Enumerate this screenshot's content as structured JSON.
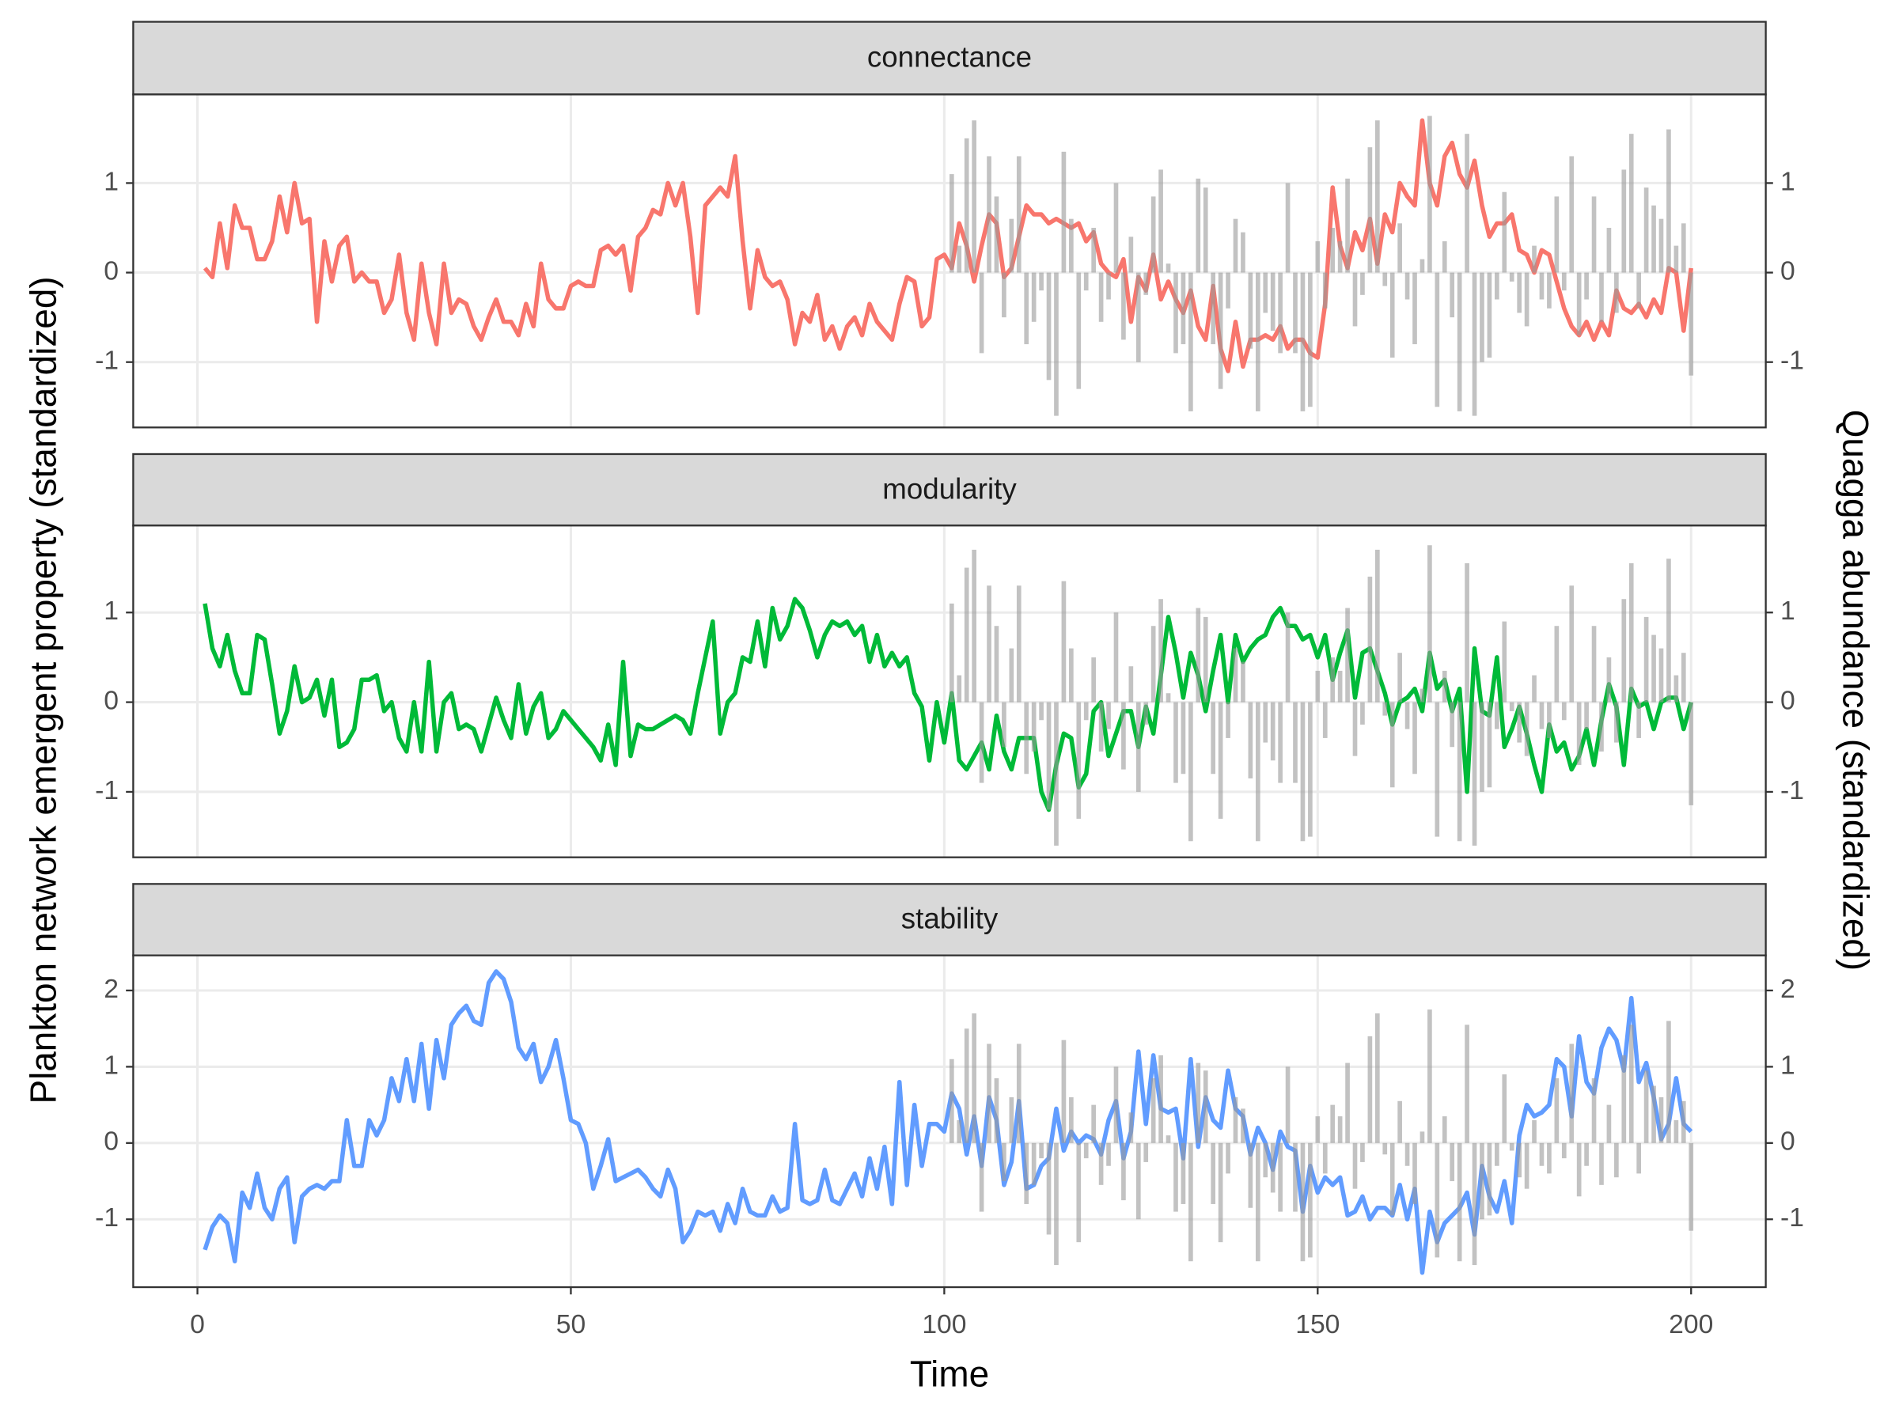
{
  "chart_data": {
    "type": "line",
    "x_label": "Time",
    "y_label": "Plankton network emergent property (standardized)",
    "y2_label": "Quagga abundance (standardized)",
    "xlim": [
      -8.6,
      210
    ],
    "xticks": [
      0,
      50,
      100,
      150,
      200
    ],
    "grid": true,
    "x": [
      1,
      2,
      3,
      4,
      5,
      6,
      7,
      8,
      9,
      10,
      11,
      12,
      13,
      14,
      15,
      16,
      17,
      18,
      19,
      20,
      21,
      22,
      23,
      24,
      25,
      26,
      27,
      28,
      29,
      30,
      31,
      32,
      33,
      34,
      35,
      36,
      37,
      38,
      39,
      40,
      41,
      42,
      43,
      44,
      45,
      46,
      47,
      48,
      49,
      50,
      51,
      52,
      53,
      54,
      55,
      56,
      57,
      58,
      59,
      60,
      61,
      62,
      63,
      64,
      65,
      66,
      67,
      68,
      69,
      70,
      71,
      72,
      73,
      74,
      75,
      76,
      77,
      78,
      79,
      80,
      81,
      82,
      83,
      84,
      85,
      86,
      87,
      88,
      89,
      90,
      91,
      92,
      93,
      94,
      95,
      96,
      97,
      98,
      99,
      100,
      101,
      102,
      103,
      104,
      105,
      106,
      107,
      108,
      109,
      110,
      111,
      112,
      113,
      114,
      115,
      116,
      117,
      118,
      119,
      120,
      121,
      122,
      123,
      124,
      125,
      126,
      127,
      128,
      129,
      130,
      131,
      132,
      133,
      134,
      135,
      136,
      137,
      138,
      139,
      140,
      141,
      142,
      143,
      144,
      145,
      146,
      147,
      148,
      149,
      150,
      151,
      152,
      153,
      154,
      155,
      156,
      157,
      158,
      159,
      160,
      161,
      162,
      163,
      164,
      165,
      166,
      167,
      168,
      169,
      170,
      171,
      172,
      173,
      174,
      175,
      176,
      177,
      178,
      179,
      180,
      181,
      182,
      183,
      184,
      185,
      186,
      187,
      188,
      189,
      190,
      191,
      192,
      193,
      194,
      195,
      196,
      197,
      198,
      199,
      200
    ],
    "bars": {
      "type": "bar",
      "axis": "y2",
      "color": "#999999",
      "x": [
        101,
        102,
        103,
        104,
        105,
        106,
        107,
        108,
        109,
        110,
        111,
        112,
        113,
        114,
        115,
        116,
        117,
        118,
        119,
        120,
        121,
        122,
        123,
        124,
        125,
        126,
        127,
        128,
        129,
        130,
        131,
        132,
        133,
        134,
        135,
        136,
        137,
        138,
        139,
        140,
        141,
        142,
        143,
        144,
        145,
        146,
        147,
        148,
        149,
        150,
        151,
        152,
        153,
        154,
        155,
        156,
        157,
        158,
        159,
        160,
        161,
        162,
        163,
        164,
        165,
        166,
        167,
        168,
        169,
        170,
        171,
        172,
        173,
        174,
        175,
        176,
        177,
        178,
        179,
        180,
        181,
        182,
        183,
        184,
        185,
        186,
        187,
        188,
        189,
        190,
        191,
        192,
        193,
        194,
        195,
        196,
        197,
        198,
        199,
        200
      ],
      "values": [
        1.1,
        0.3,
        1.5,
        1.7,
        -0.9,
        1.3,
        0.85,
        -0.5,
        0.6,
        1.3,
        -0.8,
        -0.55,
        -0.2,
        -1.2,
        -1.6,
        1.35,
        0.6,
        -1.3,
        -0.2,
        0.5,
        -0.55,
        -0.3,
        1.0,
        -0.75,
        0.4,
        -1.0,
        -0.25,
        0.85,
        1.15,
        0.1,
        -0.9,
        -0.8,
        -1.55,
        1.05,
        0.95,
        -0.8,
        -1.3,
        -0.4,
        0.6,
        0.45,
        -0.85,
        -1.55,
        -0.45,
        -0.65,
        -0.9,
        1.0,
        -0.9,
        -1.55,
        -1.5,
        0.35,
        -0.4,
        0.5,
        0.35,
        1.05,
        -0.6,
        -0.25,
        1.4,
        1.7,
        -0.15,
        -0.95,
        0.55,
        -0.3,
        -0.8,
        0.15,
        1.75,
        -1.5,
        0.35,
        -0.5,
        -1.55,
        1.55,
        -1.6,
        -1.0,
        -0.95,
        -0.3,
        0.9,
        -0.1,
        -0.45,
        -0.6,
        0.3,
        -0.3,
        -0.4,
        0.85,
        -0.2,
        1.3,
        -0.7,
        -0.3,
        0.85,
        -0.55,
        0.5,
        -0.45,
        1.15,
        1.55,
        -0.4,
        0.95,
        0.75,
        0.6,
        1.6,
        0.3,
        0.55,
        -1.15
      ]
    },
    "facets": [
      {
        "title": "connectance",
        "color": "#F8766D",
        "ylim": [
          -1.73,
          1.99
        ],
        "yticks": [
          -1,
          0,
          1
        ],
        "y2lim": [
          -1.73,
          1.99
        ],
        "y2ticks": [
          -1,
          0,
          1
        ],
        "values": [
          0.05,
          -0.05,
          0.55,
          0.05,
          0.75,
          0.5,
          0.5,
          0.15,
          0.15,
          0.35,
          0.85,
          0.45,
          1.0,
          0.55,
          0.6,
          -0.55,
          0.35,
          -0.1,
          0.3,
          0.4,
          -0.1,
          0.0,
          -0.1,
          -0.1,
          -0.45,
          -0.3,
          0.2,
          -0.45,
          -0.75,
          0.1,
          -0.45,
          -0.8,
          0.1,
          -0.45,
          -0.3,
          -0.35,
          -0.6,
          -0.75,
          -0.5,
          -0.3,
          -0.55,
          -0.55,
          -0.7,
          -0.35,
          -0.6,
          0.1,
          -0.3,
          -0.4,
          -0.4,
          -0.15,
          -0.1,
          -0.15,
          -0.15,
          0.25,
          0.3,
          0.2,
          0.3,
          -0.2,
          0.4,
          0.5,
          0.7,
          0.65,
          1.0,
          0.75,
          1.0,
          0.4,
          -0.45,
          0.75,
          0.85,
          0.95,
          0.85,
          1.3,
          0.35,
          -0.4,
          0.25,
          -0.05,
          -0.15,
          -0.1,
          -0.3,
          -0.8,
          -0.45,
          -0.55,
          -0.25,
          -0.75,
          -0.6,
          -0.85,
          -0.6,
          -0.5,
          -0.7,
          -0.35,
          -0.55,
          -0.65,
          -0.75,
          -0.35,
          -0.05,
          -0.1,
          -0.6,
          -0.5,
          0.15,
          0.2,
          0.05,
          0.55,
          0.3,
          -0.1,
          0.3,
          0.65,
          0.55,
          -0.05,
          0.05,
          0.4,
          0.75,
          0.65,
          0.65,
          0.55,
          0.6,
          0.55,
          0.5,
          0.55,
          0.35,
          0.45,
          0.1,
          0.0,
          -0.05,
          0.15,
          -0.55,
          -0.05,
          -0.2,
          0.2,
          -0.3,
          -0.1,
          -0.3,
          -0.45,
          -0.2,
          -0.6,
          -0.75,
          -0.15,
          -0.85,
          -1.1,
          -0.55,
          -1.05,
          -0.75,
          -0.75,
          -0.7,
          -0.75,
          -0.6,
          -0.85,
          -0.75,
          -0.75,
          -0.9,
          -0.95,
          -0.35,
          0.95,
          0.3,
          0.05,
          0.45,
          0.25,
          0.6,
          0.1,
          0.65,
          0.45,
          1.0,
          0.85,
          0.75,
          1.7,
          1.0,
          0.75,
          1.3,
          1.45,
          1.1,
          0.95,
          1.25,
          0.75,
          0.4,
          0.55,
          0.55,
          0.65,
          0.25,
          0.2,
          0.0,
          0.25,
          0.2,
          -0.1,
          -0.4,
          -0.6,
          -0.7,
          -0.55,
          -0.75,
          -0.55,
          -0.7,
          -0.2,
          -0.4,
          -0.45,
          -0.35,
          -0.5,
          -0.3,
          -0.45,
          0.05,
          0.0,
          -0.65,
          0.05
        ]
      },
      {
        "title": "modularity",
        "color": "#00BA38",
        "ylim": [
          -1.73,
          1.97
        ],
        "yticks": [
          -1,
          0,
          1
        ],
        "y2lim": [
          -1.73,
          1.97
        ],
        "y2ticks": [
          -1,
          0,
          1
        ],
        "values": [
          1.1,
          0.6,
          0.4,
          0.75,
          0.35,
          0.1,
          0.1,
          0.75,
          0.7,
          0.2,
          -0.35,
          -0.1,
          0.4,
          0.0,
          0.05,
          0.25,
          -0.15,
          0.25,
          -0.5,
          -0.45,
          -0.3,
          0.25,
          0.25,
          0.3,
          -0.1,
          0.0,
          -0.4,
          -0.55,
          0.0,
          -0.55,
          0.45,
          -0.55,
          0.0,
          0.1,
          -0.3,
          -0.25,
          -0.3,
          -0.55,
          -0.25,
          0.05,
          -0.2,
          -0.4,
          0.2,
          -0.35,
          -0.05,
          0.1,
          -0.4,
          -0.3,
          -0.1,
          -0.2,
          -0.3,
          -0.4,
          -0.5,
          -0.65,
          -0.25,
          -0.7,
          0.45,
          -0.6,
          -0.25,
          -0.3,
          -0.3,
          -0.25,
          -0.2,
          -0.15,
          -0.2,
          -0.35,
          0.1,
          0.5,
          0.9,
          -0.35,
          0.0,
          0.1,
          0.5,
          0.45,
          0.9,
          0.4,
          1.05,
          0.7,
          0.85,
          1.15,
          1.05,
          0.8,
          0.5,
          0.75,
          0.9,
          0.85,
          0.9,
          0.75,
          0.85,
          0.45,
          0.75,
          0.4,
          0.55,
          0.4,
          0.5,
          0.1,
          -0.05,
          -0.65,
          0.0,
          -0.45,
          0.1,
          -0.65,
          -0.75,
          -0.6,
          -0.45,
          -0.75,
          -0.15,
          -0.55,
          -0.75,
          -0.4,
          -0.4,
          -0.4,
          -1.0,
          -1.2,
          -0.7,
          -0.35,
          -0.4,
          -0.95,
          -0.8,
          -0.1,
          0.0,
          -0.6,
          -0.35,
          -0.1,
          -0.1,
          -0.5,
          -0.05,
          -0.35,
          0.3,
          0.95,
          0.55,
          0.05,
          0.55,
          0.3,
          -0.1,
          0.35,
          0.75,
          0.0,
          0.75,
          0.45,
          0.6,
          0.7,
          0.75,
          0.95,
          1.05,
          0.85,
          0.85,
          0.7,
          0.75,
          0.5,
          0.75,
          0.25,
          0.55,
          0.8,
          0.05,
          0.55,
          0.6,
          0.35,
          0.1,
          -0.25,
          0.0,
          0.05,
          0.15,
          -0.1,
          0.55,
          0.15,
          0.25,
          -0.1,
          0.15,
          -1.0,
          0.6,
          -0.1,
          -0.15,
          0.5,
          -0.5,
          -0.3,
          -0.05,
          -0.35,
          -0.7,
          -1.0,
          -0.25,
          -0.55,
          -0.45,
          -0.75,
          -0.6,
          -0.3,
          -0.7,
          -0.2,
          0.2,
          -0.05,
          -0.7,
          0.15,
          -0.05,
          0.0,
          -0.3,
          0.0,
          0.05,
          0.05,
          -0.3,
          0.0
        ]
      },
      {
        "title": "stability",
        "color": "#619CFF",
        "ylim": [
          -1.89,
          2.46
        ],
        "yticks": [
          -1,
          0,
          1,
          2
        ],
        "y2lim": [
          -1.89,
          2.46
        ],
        "y2ticks": [
          -1,
          0,
          1,
          2
        ],
        "values": [
          -1.4,
          -1.1,
          -0.95,
          -1.05,
          -1.55,
          -0.65,
          -0.85,
          -0.4,
          -0.85,
          -1.0,
          -0.6,
          -0.45,
          -1.3,
          -0.7,
          -0.6,
          -0.55,
          -0.6,
          -0.5,
          -0.5,
          0.3,
          -0.3,
          -0.3,
          0.3,
          0.1,
          0.3,
          0.85,
          0.55,
          1.1,
          0.55,
          1.3,
          0.45,
          1.35,
          0.85,
          1.55,
          1.7,
          1.8,
          1.6,
          1.55,
          2.1,
          2.25,
          2.15,
          1.85,
          1.25,
          1.1,
          1.3,
          0.8,
          1.0,
          1.35,
          0.85,
          0.3,
          0.25,
          0.0,
          -0.6,
          -0.3,
          0.05,
          -0.5,
          -0.45,
          -0.4,
          -0.35,
          -0.45,
          -0.6,
          -0.7,
          -0.35,
          -0.6,
          -1.3,
          -1.15,
          -0.9,
          -0.95,
          -0.9,
          -1.15,
          -0.8,
          -1.05,
          -0.6,
          -0.9,
          -0.95,
          -0.95,
          -0.7,
          -0.9,
          -0.85,
          0.25,
          -0.75,
          -0.8,
          -0.75,
          -0.35,
          -0.75,
          -0.8,
          -0.6,
          -0.4,
          -0.7,
          -0.2,
          -0.6,
          -0.05,
          -0.8,
          0.8,
          -0.55,
          0.5,
          -0.3,
          0.25,
          0.25,
          0.15,
          0.65,
          0.45,
          -0.15,
          0.35,
          -0.3,
          0.6,
          0.3,
          -0.55,
          -0.25,
          0.55,
          -0.6,
          -0.55,
          -0.3,
          -0.2,
          0.45,
          -0.1,
          0.15,
          0.0,
          0.1,
          0.05,
          -0.15,
          0.3,
          0.55,
          -0.2,
          0.15,
          1.2,
          0.25,
          1.15,
          0.45,
          0.4,
          0.45,
          -0.2,
          1.1,
          -0.05,
          0.6,
          0.3,
          0.2,
          0.95,
          0.45,
          0.35,
          -0.15,
          0.2,
          0.0,
          -0.35,
          0.15,
          -0.05,
          -0.1,
          -0.9,
          -0.3,
          -0.65,
          -0.45,
          -0.55,
          -0.45,
          -0.95,
          -0.9,
          -0.7,
          -1.0,
          -0.85,
          -0.85,
          -0.95,
          -0.55,
          -1.0,
          -0.6,
          -1.7,
          -0.9,
          -1.3,
          -1.05,
          -0.95,
          -0.85,
          -0.65,
          -1.2,
          -0.3,
          -0.7,
          -0.9,
          -0.5,
          -1.05,
          0.1,
          0.5,
          0.35,
          0.4,
          0.5,
          1.1,
          1.0,
          0.35,
          1.4,
          0.8,
          0.65,
          1.25,
          1.5,
          1.35,
          0.95,
          1.9,
          0.8,
          1.05,
          0.6,
          0.05,
          0.25,
          0.85,
          0.25,
          0.15
        ]
      }
    ]
  }
}
